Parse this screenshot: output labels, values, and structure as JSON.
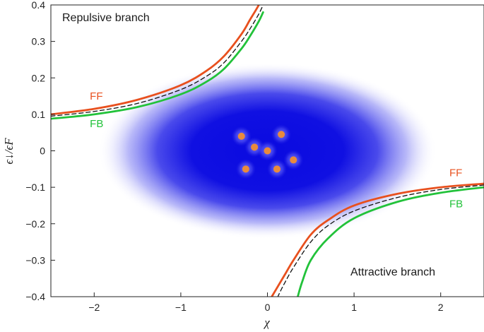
{
  "chart_data": {
    "type": "line",
    "xlabel": "χ",
    "ylabel": "ϵ↓/ϵF",
    "xlim": [
      -2.5,
      2.5
    ],
    "ylim": [
      -0.4,
      0.4
    ],
    "x_ticks": [
      -2,
      -1,
      0,
      1,
      2
    ],
    "x_tick_labels": [
      "−2",
      "−1",
      "0",
      "1",
      "2"
    ],
    "y_ticks": [
      -0.4,
      -0.3,
      -0.2,
      -0.1,
      0,
      0.1,
      0.2,
      0.3,
      0.4
    ],
    "y_tick_labels": [
      "−0.4",
      "−0.3",
      "−0.2",
      "−0.1",
      "0",
      "0.1",
      "0.2",
      "0.3",
      "0.4"
    ],
    "grid": false,
    "annotations": {
      "repulsive": "Repulsive branch",
      "attractive": "Attractive branch"
    },
    "series": [
      {
        "name": "FF",
        "color": "#e8501e",
        "style": "solid",
        "branches": {
          "repulsive": {
            "x": [
              -2.5,
              -2.0,
              -1.5,
              -1.0,
              -0.7,
              -0.5,
              -0.3,
              -0.2,
              -0.1,
              -0.05
            ],
            "y": [
              0.1,
              0.115,
              0.14,
              0.18,
              0.22,
              0.26,
              0.32,
              0.36,
              0.4,
              0.43
            ]
          },
          "attractive": {
            "x": [
              2.5,
              2.0,
              1.5,
              1.0,
              0.7,
              0.5,
              0.3,
              0.2,
              0.1,
              0.05
            ],
            "y": [
              -0.09,
              -0.1,
              -0.118,
              -0.15,
              -0.19,
              -0.23,
              -0.3,
              -0.34,
              -0.38,
              -0.4
            ]
          }
        }
      },
      {
        "name": "",
        "color": "#111111",
        "style": "dashed",
        "branches": {
          "repulsive": {
            "x": [
              -2.5,
              -2.0,
              -1.5,
              -1.0,
              -0.7,
              -0.5,
              -0.3,
              -0.2,
              -0.1,
              -0.05
            ],
            "y": [
              0.095,
              0.108,
              0.13,
              0.168,
              0.205,
              0.242,
              0.3,
              0.335,
              0.375,
              0.4
            ]
          },
          "attractive": {
            "x": [
              2.5,
              2.0,
              1.5,
              1.0,
              0.7,
              0.5,
              0.3,
              0.2,
              0.15,
              0.12
            ],
            "y": [
              -0.094,
              -0.106,
              -0.128,
              -0.165,
              -0.205,
              -0.25,
              -0.32,
              -0.362,
              -0.385,
              -0.4
            ]
          }
        }
      },
      {
        "name": "FB",
        "color": "#22c23a",
        "style": "solid",
        "branches": {
          "repulsive": {
            "x": [
              -2.5,
              -2.0,
              -1.5,
              -1.0,
              -0.7,
              -0.5,
              -0.3,
              -0.2,
              -0.1,
              -0.05
            ],
            "y": [
              0.088,
              0.1,
              0.12,
              0.155,
              0.19,
              0.225,
              0.28,
              0.315,
              0.355,
              0.38
            ]
          },
          "attractive": {
            "x": [
              2.5,
              2.0,
              1.5,
              1.0,
              0.7,
              0.5,
              0.4,
              0.35
            ],
            "y": [
              -0.1,
              -0.115,
              -0.14,
              -0.185,
              -0.24,
              -0.3,
              -0.36,
              -0.4
            ]
          }
        }
      }
    ],
    "series_labels": [
      {
        "text": "FF",
        "color": "#e8501e",
        "x": -2.05,
        "y": 0.14
      },
      {
        "text": "FB",
        "color": "#22c23a",
        "x": -2.05,
        "y": 0.065
      },
      {
        "text": "FF",
        "color": "#e8501e",
        "x": 2.1,
        "y": -0.07
      },
      {
        "text": "FB",
        "color": "#22c23a",
        "x": 2.1,
        "y": -0.155
      }
    ],
    "cloud": {
      "center": [
        0,
        0
      ],
      "color": "#1414e6"
    },
    "particles": [
      {
        "x": -0.3,
        "y": 0.04
      },
      {
        "x": 0.16,
        "y": 0.045
      },
      {
        "x": -0.15,
        "y": 0.01
      },
      {
        "x": 0.0,
        "y": 0.0
      },
      {
        "x": -0.25,
        "y": -0.05
      },
      {
        "x": 0.11,
        "y": -0.05
      },
      {
        "x": 0.3,
        "y": -0.025
      }
    ]
  }
}
